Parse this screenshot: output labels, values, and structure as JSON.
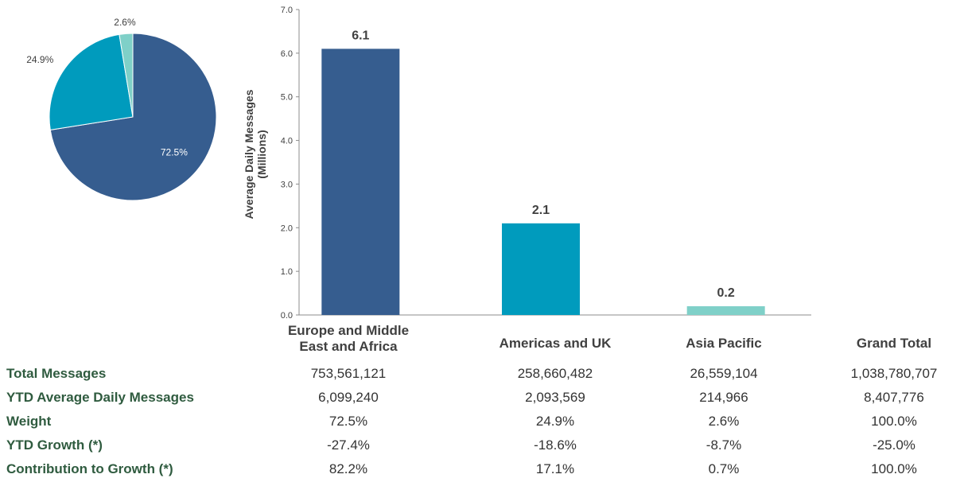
{
  "colors": {
    "europe": "#365d8f",
    "americas": "#009bbd",
    "asia": "#7fd0c8",
    "row_label": "#2f5b3f"
  },
  "chart_data": [
    {
      "type": "pie",
      "slices": [
        {
          "label": "72.5%",
          "value": 72.5,
          "color": "#365d8f"
        },
        {
          "label": "24.9%",
          "value": 24.9,
          "color": "#009bbd"
        },
        {
          "label": "2.6%",
          "value": 2.6,
          "color": "#7fd0c8"
        }
      ]
    },
    {
      "type": "bar",
      "categories": [
        "Europe and Middle East and Africa",
        "Americas and UK",
        "Asia Pacific"
      ],
      "values": [
        6.1,
        2.1,
        0.2
      ],
      "data_labels": [
        "6.1",
        "2.1",
        "0.2"
      ],
      "colors": [
        "#365d8f",
        "#009bbd",
        "#7fd0c8"
      ],
      "ylabel_line1": "Average Daily Messages",
      "ylabel_line2": "(Millions)",
      "ylim": [
        0,
        7
      ],
      "yticks": [
        "0.0",
        "1.0",
        "2.0",
        "3.0",
        "4.0",
        "5.0",
        "6.0",
        "7.0"
      ],
      "grid": false
    }
  ],
  "table": {
    "columns": [
      "Europe and Middle East and Africa",
      "Americas and UK",
      "Asia Pacific",
      "Grand Total"
    ],
    "col_head_lines": [
      [
        "Europe and Middle",
        "East and Africa"
      ],
      [
        "Americas and UK"
      ],
      [
        "Asia Pacific"
      ],
      [
        "Grand Total"
      ]
    ],
    "rows": [
      {
        "label": "Total Messages",
        "values": [
          "753,561,121",
          "258,660,482",
          "26,559,104",
          "1,038,780,707"
        ]
      },
      {
        "label": "YTD Average Daily Messages",
        "values": [
          "6,099,240",
          "2,093,569",
          "214,966",
          "8,407,776"
        ]
      },
      {
        "label": "Weight",
        "values": [
          "72.5%",
          "24.9%",
          "2.6%",
          "100.0%"
        ]
      },
      {
        "label": "YTD Growth (*)",
        "values": [
          "-27.4%",
          "-18.6%",
          "-8.7%",
          "-25.0%"
        ]
      },
      {
        "label": "Contribution to Growth (*)",
        "values": [
          "82.2%",
          "17.1%",
          "0.7%",
          "100.0%"
        ]
      }
    ]
  }
}
